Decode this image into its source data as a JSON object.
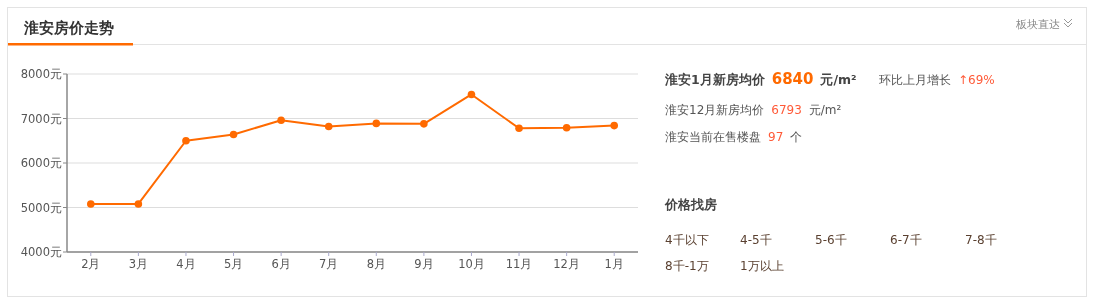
{
  "chart_data": [
    {
      "type": "line",
      "title": "淮安房价走势",
      "annotations": [
        "板块直达"
      ],
      "categories": [
        "2月",
        "3月",
        "4月",
        "5月",
        "6月",
        "7月",
        "8月",
        "9月",
        "10月",
        "11月",
        "12月",
        "1月"
      ],
      "series": [
        {
          "color": "#ff6a00",
          "values": [
            5080,
            5080,
            6500,
            6640,
            6960,
            6820,
            6890,
            6880,
            7540,
            6780,
            6793,
            6840
          ]
        }
      ],
      "ylim": [
        4000,
        8000
      ],
      "yticks": [
        {
          "value": 4000,
          "label": "4000元"
        },
        {
          "value": 5000,
          "label": "5000元"
        },
        {
          "value": 6000,
          "label": "6000元"
        },
        {
          "value": 7000,
          "label": "7000元"
        },
        {
          "value": 8000,
          "label": "8000元"
        }
      ],
      "grid": "y",
      "marker": "circle",
      "line_style": "solid"
    },
    {
      "type": "other",
      "annotations": [
        "淮安1月新房均价",
        "6840",
        "元/m²",
        "环比上月增长",
        "↑69%",
        "淮安12月新房均价",
        "6793",
        "元/m²",
        "淮安当前在售楼盘",
        "97",
        "个",
        "价格找房",
        "4千以下",
        "4-5千",
        "5-6千",
        "6-7千",
        "7-8千",
        "8千-1万",
        "1万以上"
      ]
    }
  ]
}
